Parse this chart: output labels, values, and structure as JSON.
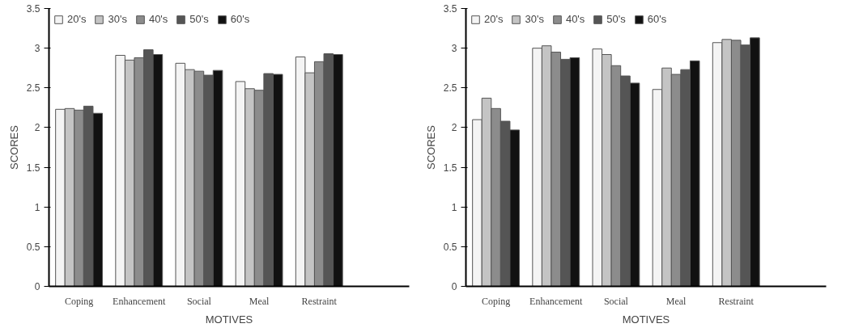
{
  "chart_data": [
    {
      "type": "bar",
      "xlabel": "MOTIVES",
      "ylabel": "SCORES",
      "categories": [
        "Coping",
        "Enhancement",
        "Social",
        "Meal",
        "Restraint"
      ],
      "ylim": [
        0,
        3.5
      ],
      "yticks": [
        0,
        0.5,
        1,
        1.5,
        2,
        2.5,
        3,
        3.5
      ],
      "grid": false,
      "legend": "top left",
      "series": [
        {
          "name": "20's",
          "color": "#f4f4f4",
          "values": [
            2.23,
            2.91,
            2.81,
            2.58,
            2.89
          ]
        },
        {
          "name": "30's",
          "color": "#c4c4c4",
          "values": [
            2.24,
            2.85,
            2.73,
            2.49,
            2.69
          ]
        },
        {
          "name": "40's",
          "color": "#8c8c8c",
          "values": [
            2.22,
            2.88,
            2.71,
            2.47,
            2.83
          ]
        },
        {
          "name": "50's",
          "color": "#555555",
          "values": [
            2.27,
            2.98,
            2.66,
            2.68,
            2.93
          ]
        },
        {
          "name": "60's",
          "color": "#111111",
          "values": [
            2.18,
            2.92,
            2.72,
            2.67,
            2.92
          ]
        }
      ]
    },
    {
      "type": "bar",
      "xlabel": "MOTIVES",
      "ylabel": "SCORES",
      "categories": [
        "Coping",
        "Enhancement",
        "Social",
        "Meal",
        "Restraint"
      ],
      "ylim": [
        0,
        3.5
      ],
      "yticks": [
        0,
        0.5,
        1,
        1.5,
        2,
        2.5,
        3,
        3.5
      ],
      "grid": false,
      "legend": "top left",
      "series": [
        {
          "name": "20's",
          "color": "#f4f4f4",
          "values": [
            2.1,
            3.0,
            2.99,
            2.48,
            3.07
          ]
        },
        {
          "name": "30's",
          "color": "#c4c4c4",
          "values": [
            2.37,
            3.03,
            2.92,
            2.75,
            3.11
          ]
        },
        {
          "name": "40's",
          "color": "#8c8c8c",
          "values": [
            2.24,
            2.95,
            2.78,
            2.67,
            3.1
          ]
        },
        {
          "name": "50's",
          "color": "#555555",
          "values": [
            2.08,
            2.86,
            2.65,
            2.73,
            3.04
          ]
        },
        {
          "name": "60's",
          "color": "#111111",
          "values": [
            1.97,
            2.88,
            2.56,
            2.84,
            3.13
          ]
        }
      ]
    }
  ]
}
